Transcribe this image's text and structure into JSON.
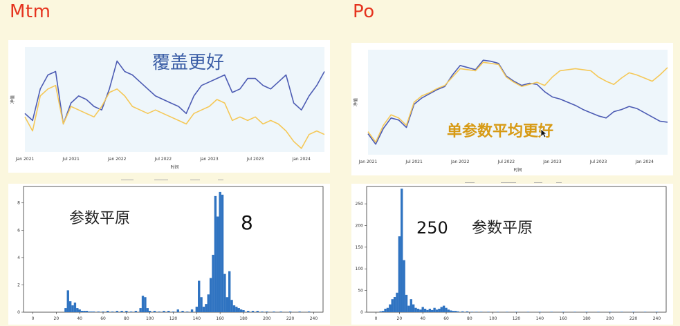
{
  "left": {
    "title": "Mtm",
    "line_annotation": "覆盖更好",
    "hist_annotation_label": "参数平原",
    "hist_annotation_value": "8"
  },
  "right": {
    "title": "Po",
    "line_annotation": "单参数平均更好",
    "hist_annotation_label": "参数平原",
    "hist_annotation_value": "250"
  },
  "colors": {
    "blue_line": "#4c5bb3",
    "yellow_line": "#f5c857",
    "bar": "#2f73c1",
    "title_red": "#e5331e",
    "annot_blue": "#3a5da6",
    "annot_gold": "#d79a14"
  },
  "chart_data": [
    {
      "id": "mtm-line",
      "type": "line",
      "title": "",
      "xlabel": "时间",
      "ylabel": "净值",
      "x_tick_labels": [
        "Jan 2021",
        "Jul 2021",
        "Jan 2022",
        "Jul 2022",
        "Jan 2023",
        "Jul 2023",
        "Jan 2024"
      ],
      "x_tick_positions": [
        0,
        6,
        12,
        18,
        24,
        30,
        36
      ],
      "x_range": [
        0,
        39
      ],
      "y_range": [
        0.4,
        3.4
      ],
      "series": [
        {
          "color": "#4c5bb3",
          "x": [
            0,
            1,
            2,
            3,
            4,
            5,
            6,
            7,
            8,
            9,
            10,
            11,
            12,
            13,
            14,
            15,
            16,
            17,
            18,
            19,
            20,
            21,
            22,
            23,
            24,
            25,
            26,
            27,
            28,
            29,
            30,
            31,
            32,
            33,
            34,
            35,
            36,
            37,
            38,
            39
          ],
          "values": [
            1.5,
            1.3,
            2.2,
            2.6,
            2.7,
            1.2,
            1.8,
            2.0,
            1.9,
            1.7,
            1.6,
            2.2,
            3.0,
            2.7,
            2.6,
            2.4,
            2.2,
            2.0,
            1.9,
            1.8,
            1.7,
            1.5,
            2.0,
            2.3,
            2.4,
            2.5,
            2.6,
            2.1,
            2.2,
            2.5,
            2.5,
            2.3,
            2.2,
            2.4,
            2.6,
            1.8,
            1.6,
            2.0,
            2.3,
            2.7
          ]
        },
        {
          "color": "#f5c857",
          "x": [
            0,
            1,
            2,
            3,
            4,
            5,
            6,
            7,
            8,
            9,
            10,
            11,
            12,
            13,
            14,
            15,
            16,
            17,
            18,
            19,
            20,
            21,
            22,
            23,
            24,
            25,
            26,
            27,
            28,
            29,
            30,
            31,
            32,
            33,
            34,
            35,
            36,
            37,
            38,
            39
          ],
          "values": [
            1.4,
            1.0,
            2.0,
            2.2,
            2.3,
            1.2,
            1.7,
            1.6,
            1.5,
            1.4,
            1.7,
            2.1,
            2.2,
            2.0,
            1.7,
            1.6,
            1.5,
            1.6,
            1.5,
            1.4,
            1.3,
            1.2,
            1.5,
            1.6,
            1.7,
            1.9,
            1.8,
            1.3,
            1.4,
            1.3,
            1.4,
            1.2,
            1.3,
            1.2,
            1.0,
            0.7,
            0.5,
            0.9,
            1.0,
            0.9
          ]
        }
      ]
    },
    {
      "id": "po-line",
      "type": "line",
      "title": "",
      "xlabel": "时间",
      "ylabel": "净值",
      "x_tick_labels": [
        "Jan 2021",
        "Jul 2021",
        "Jan 2022",
        "Jul 2022",
        "Jan 2023",
        "Jul 2023",
        "Jan 2024"
      ],
      "x_tick_positions": [
        0,
        6,
        12,
        18,
        24,
        30,
        36
      ],
      "x_range": [
        0,
        39
      ],
      "y_range": [
        0,
        10
      ],
      "series": [
        {
          "color": "#4c5bb3",
          "x": [
            0,
            1,
            2,
            3,
            4,
            5,
            6,
            7,
            8,
            9,
            10,
            11,
            12,
            13,
            14,
            15,
            16,
            17,
            18,
            19,
            20,
            21,
            22,
            23,
            24,
            25,
            26,
            27,
            28,
            29,
            30,
            31,
            32,
            33,
            34,
            35,
            36,
            37,
            38,
            39
          ],
          "values": [
            2.0,
            1.0,
            2.5,
            3.5,
            3.3,
            2.6,
            4.8,
            5.4,
            5.8,
            6.2,
            6.5,
            7.6,
            8.5,
            8.3,
            8.1,
            9.0,
            8.9,
            8.7,
            7.5,
            7.0,
            6.6,
            6.8,
            6.7,
            6.0,
            5.5,
            5.3,
            5.0,
            4.7,
            4.3,
            4.0,
            3.7,
            3.5,
            4.1,
            4.3,
            4.6,
            4.4,
            4.0,
            3.6,
            3.2,
            3.1
          ]
        },
        {
          "color": "#f5c857",
          "x": [
            0,
            1,
            2,
            3,
            4,
            5,
            6,
            7,
            8,
            9,
            10,
            11,
            12,
            13,
            14,
            15,
            16,
            17,
            18,
            19,
            20,
            21,
            22,
            23,
            24,
            25,
            26,
            27,
            28,
            29,
            30,
            31,
            32,
            33,
            34,
            35,
            36,
            37,
            38,
            39
          ],
          "values": [
            2.2,
            1.2,
            2.8,
            3.8,
            3.5,
            2.8,
            5.0,
            5.6,
            5.9,
            6.3,
            6.6,
            7.4,
            8.2,
            8.1,
            8.0,
            8.8,
            8.7,
            8.6,
            7.4,
            6.9,
            6.5,
            6.7,
            6.9,
            6.6,
            7.4,
            8.0,
            8.1,
            8.2,
            8.1,
            8.0,
            7.4,
            7.0,
            6.7,
            7.3,
            7.8,
            7.6,
            7.3,
            7.0,
            7.6,
            8.3
          ]
        }
      ]
    },
    {
      "id": "mtm-hist",
      "type": "bar",
      "title": "",
      "xlabel": "",
      "ylabel": "",
      "x_ticks": [
        0,
        20,
        40,
        60,
        80,
        100,
        120,
        140,
        160,
        180,
        200,
        220,
        240
      ],
      "y_ticks": [
        0,
        2,
        4,
        6,
        8
      ],
      "xlim": [
        -8,
        248
      ],
      "ylim": [
        0,
        9.2
      ],
      "bin_width": 2,
      "x": [
        28,
        30,
        32,
        34,
        36,
        38,
        40,
        42,
        44,
        46,
        48,
        50,
        52,
        56,
        60,
        64,
        68,
        72,
        76,
        80,
        84,
        88,
        92,
        94,
        96,
        98,
        100,
        104,
        108,
        112,
        116,
        120,
        124,
        128,
        132,
        136,
        140,
        142,
        144,
        146,
        148,
        150,
        152,
        154,
        156,
        158,
        160,
        162,
        164,
        166,
        168,
        170,
        172,
        174,
        176,
        178,
        180,
        184,
        188,
        192,
        196,
        200,
        206,
        212,
        220,
        228,
        236
      ],
      "values": [
        0.3,
        1.6,
        0.8,
        0.5,
        0.7,
        0.3,
        0.2,
        0.1,
        0.1,
        0.1,
        0.05,
        0.05,
        0.05,
        0.05,
        0.05,
        0.1,
        0.05,
        0.1,
        0.1,
        0.1,
        0.05,
        0.1,
        0.3,
        1.2,
        1.1,
        0.3,
        0.1,
        0.1,
        0.05,
        0.1,
        0.1,
        0.05,
        0.2,
        0.1,
        0.05,
        0.2,
        0.4,
        2.3,
        1.1,
        0.4,
        0.6,
        1.3,
        2.5,
        4.2,
        8.5,
        7.0,
        8.8,
        8.6,
        2.8,
        1.1,
        3.0,
        0.9,
        0.5,
        0.4,
        0.3,
        0.2,
        0.15,
        0.1,
        0.1,
        0.1,
        0.05,
        0.05,
        0.05,
        0.05,
        0.05,
        0.05,
        0.05
      ]
    },
    {
      "id": "po-hist",
      "type": "bar",
      "title": "",
      "xlabel": "",
      "ylabel": "",
      "x_ticks": [
        0,
        20,
        40,
        60,
        80,
        100,
        120,
        140,
        160,
        180,
        200,
        220,
        240
      ],
      "y_ticks": [
        0,
        50,
        100,
        150,
        200,
        250
      ],
      "xlim": [
        -8,
        248
      ],
      "ylim": [
        0,
        290
      ],
      "bin_width": 2,
      "x": [
        4,
        6,
        8,
        10,
        12,
        14,
        16,
        18,
        20,
        22,
        24,
        26,
        28,
        30,
        32,
        34,
        36,
        38,
        40,
        42,
        44,
        46,
        48,
        50,
        52,
        54,
        56,
        58,
        60,
        62,
        64,
        66,
        68,
        70,
        74,
        78,
        82,
        86,
        90,
        96,
        104,
        112,
        120,
        130,
        140,
        150,
        160,
        170,
        180,
        190,
        200,
        210,
        220,
        230,
        240
      ],
      "values": [
        2,
        3,
        8,
        10,
        18,
        30,
        35,
        45,
        175,
        285,
        120,
        40,
        15,
        30,
        18,
        10,
        8,
        6,
        12,
        8,
        5,
        8,
        5,
        10,
        6,
        8,
        12,
        15,
        10,
        6,
        4,
        3,
        3,
        2,
        2,
        2,
        1,
        1,
        1,
        1,
        1,
        1,
        1,
        1,
        1,
        1,
        1,
        1,
        1,
        1,
        1,
        1,
        1,
        1,
        1
      ]
    }
  ]
}
